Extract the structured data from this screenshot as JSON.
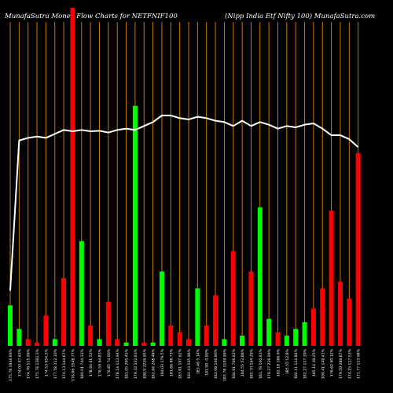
{
  "header": {
    "title_left": "MunafaSutra  Money  Flow  Charts for NETFNIF100",
    "title_right": "(Nipp India  Etf  Nifty 100) MunafaSutra.com"
  },
  "colors": {
    "background": "#000000",
    "up": "#00ff00",
    "down": "#ff0000",
    "grid": "#cc7a00",
    "line": "#ffffff",
    "text": "#ffffff"
  },
  "chart_data": {
    "type": "bar",
    "bar_ylim": [
      0,
      100
    ],
    "line_ylim": [
      0,
      100
    ],
    "categories": [
      "175.78 1936.69%",
      "174.03 47.63%",
      "174.78 115.09%",
      "175.78 1382.3%",
      "174.53 954.5%",
      "177.58 312.10%",
      "174.13 144.67%",
      "176.86 3548.77%",
      "180.01 744.33%",
      "178.94 61.52%",
      "176.50 64.83%",
      "176.85 74.00%",
      "178.14 133.94%",
      "181.05 200.45%",
      "179.32 132.63%",
      "180.9 2226.95%",
      "182.64 268.48%",
      "184.03 179.5%",
      "181.86 88.73%",
      "183.81 197.62%",
      "183.43 105.96%",
      "183.46 5.14%",
      "181.90 -0.90%",
      "182.08 106.90%",
      "183.78 1109.99%",
      "184.91 706.42%",
      "184.55 52.88%",
      "185.70 164.29%",
      "181.78 100.63%",
      "179.27 226.09%",
      "182.18 186.9%",
      "185.55 12.8%",
      "184.11 114.84%",
      "182.27 117.39%",
      "185.14 38.25%",
      "180.41 148.41%",
      "176.62 90.12%",
      "179.59 288.87%",
      "174.15 117.53%",
      "171.77 113.08%"
    ],
    "series": [
      {
        "kind": "money_flow_bars",
        "values": [
          12,
          5,
          2,
          1,
          9,
          2,
          20,
          100,
          31,
          6,
          2,
          13,
          2,
          1,
          71,
          1,
          1,
          22,
          6,
          4,
          2,
          17,
          6,
          15,
          2,
          28,
          3,
          22,
          41,
          8,
          4,
          3,
          5,
          7,
          11,
          17,
          40,
          19,
          14,
          57
        ],
        "directions": [
          "up",
          "up",
          "down",
          "down",
          "down",
          "up",
          "down",
          "down",
          "up",
          "down",
          "up",
          "down",
          "down",
          "up",
          "up",
          "down",
          "up",
          "up",
          "down",
          "down",
          "down",
          "up",
          "down",
          "down",
          "up",
          "down",
          "up",
          "down",
          "up",
          "up",
          "down",
          "up",
          "up",
          "up",
          "down",
          "down",
          "down",
          "down",
          "down",
          "down"
        ]
      },
      {
        "kind": "price_line",
        "values": [
          18,
          75,
          76,
          76.5,
          76,
          77.5,
          79,
          78.5,
          79,
          78.5,
          78.7,
          78,
          79,
          79.5,
          79,
          80.5,
          82,
          84.5,
          84.5,
          83.5,
          83,
          84,
          83.5,
          82.5,
          82,
          80.5,
          82.5,
          80.5,
          82,
          81,
          79.5,
          80.5,
          80,
          81,
          81.5,
          79.5,
          77,
          77,
          75.5,
          72.5
        ]
      }
    ]
  }
}
